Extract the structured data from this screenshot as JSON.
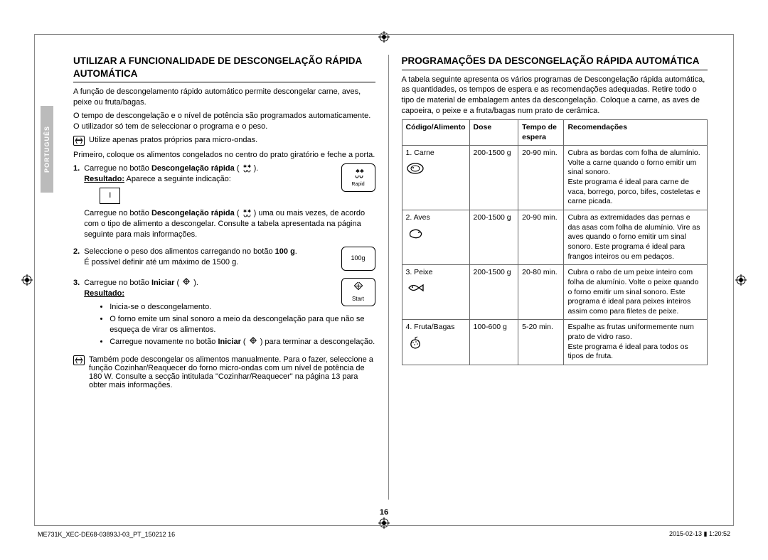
{
  "sidebar": {
    "language": "PORTUGUÊS"
  },
  "left": {
    "heading": "UTILIZAR A FUNCIONALIDADE DE DESCONGELAÇÃO RÁPIDA AUTOMÁTICA",
    "p1": "A função de descongelamento rápido automático permite descongelar carne, aves, peixe ou fruta/bagas.",
    "p2": "O tempo de descongelação e o nível de potência são programados automaticamente. O utilizador só tem de seleccionar o programa e o peso.",
    "note1": "Utilize apenas pratos próprios para micro-ondas.",
    "p3": "Primeiro, coloque os alimentos congelados no centro do prato giratório e feche a porta.",
    "step1_a": "Carregue no botão ",
    "step1_b": "Descongelação rápida",
    "step1_c": " ( ",
    "step1_d": " ).",
    "step1_result_label": "Resultado:",
    "step1_result_text": " Aparece a seguinte indicação:",
    "display_value": "I",
    "rapid_btn_label": "Rapid",
    "step1_p2a": "Carregue no botão ",
    "step1_p2b": "Descongelação rápida",
    "step1_p2c": " ( ",
    "step1_p2d": " ) uma ou mais vezes, de acordo com o tipo de alimento a descongelar. Consulte a tabela apresentada na página seguinte para mais informações.",
    "step2_a": "Seleccione o peso dos alimentos carregando no botão ",
    "step2_b": "100 g",
    "step2_c": ".",
    "step2_p2": "É possível definir até um máximo de 1500 g.",
    "weight_btn": "100g",
    "step3_a": "Carregue no botão ",
    "step3_b": "Iniciar",
    "step3_c": " ( ",
    "step3_d": " ).",
    "step3_result": "Resultado:",
    "start_btn": "Start",
    "bullet1": "Inicia-se o descongelamento.",
    "bullet2": "O forno emite um sinal sonoro a meio da descongelação para que não se esqueça de virar os alimentos.",
    "bullet3a": "Carregue novamente no botão ",
    "bullet3b": "Iniciar",
    "bullet3c": " ( ",
    "bullet3d": " ) para terminar a descongelação.",
    "note2": "Também pode descongelar os alimentos manualmente. Para o fazer, seleccione a função Cozinhar/Reaquecer do forno micro-ondas com um nível de potência de 180 W. Consulte a secção intitulada \"Cozinhar/Reaquecer\" na página 13 para obter mais informações."
  },
  "right": {
    "heading": "PROGRAMAÇÕES DA DESCONGELAÇÃO RÁPIDA AUTOMÁTICA",
    "p1": "A tabela seguinte apresenta os vários programas de Descongelação rápida automática, as quantidades, os tempos de espera e as recomendações adequadas. Retire todo o tipo de material de embalagem antes da descongelação. Coloque a carne, as aves de capoeira, o peixe e a fruta/bagas num prato de cerâmica.",
    "table": {
      "headers": [
        "Código/Alimento",
        "Dose",
        "Tempo de espera",
        "Recomendações"
      ],
      "col_widths": [
        "22%",
        "16%",
        "15%",
        "47%"
      ],
      "rows": [
        {
          "code": "1. Carne",
          "icon": "meat",
          "dose": "200-1500 g",
          "time": "20-90 min.",
          "rec": "Cubra as bordas com folha de alumínio. Volte a carne quando o forno emitir um sinal sonoro.\nEste programa é ideal para carne de vaca, borrego, porco, bifes, costeletas e carne picada."
        },
        {
          "code": "2. Aves",
          "icon": "poultry",
          "dose": "200-1500 g",
          "time": "20-90 min.",
          "rec": "Cubra as extremidades das pernas e das asas com folha de alumínio. Vire as aves quando o forno emitir um sinal sonoro. Este programa é ideal para frangos inteiros ou em pedaços."
        },
        {
          "code": "3. Peixe",
          "icon": "fish",
          "dose": "200-1500 g",
          "time": "20-80 min.",
          "rec": "Cubra o rabo de um peixe inteiro com folha de alumínio. Volte o peixe quando o forno emitir um sinal sonoro. Este programa é ideal para peixes inteiros assim como para filetes de peixe."
        },
        {
          "code": "4. Fruta/Bagas",
          "icon": "berry",
          "dose": "100-600 g",
          "time": "5-20 min.",
          "rec": "Espalhe as frutas uniformemente num prato de vidro raso.\nEste programa é ideal para todos os tipos de fruta."
        }
      ]
    }
  },
  "page_number": "16",
  "footer": {
    "left": "ME731K_XEC-DE68-03893J-03_PT_150212   16",
    "right": "2015-02-13   ▮ 1:20:52"
  }
}
